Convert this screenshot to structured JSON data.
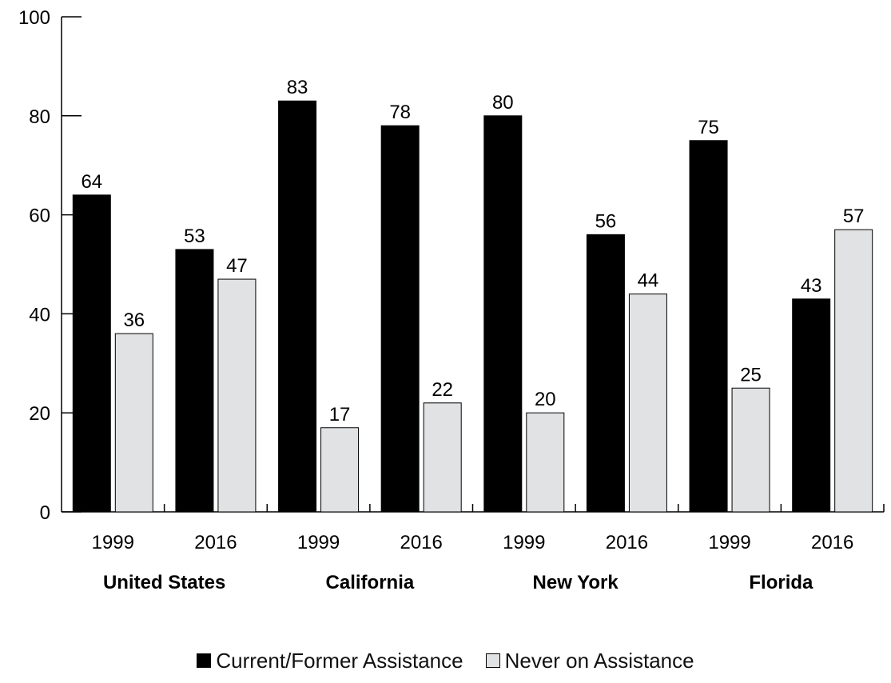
{
  "chart_data": {
    "type": "bar",
    "groups": [
      {
        "name": "United States",
        "years": [
          "1999",
          "2016"
        ]
      },
      {
        "name": "California",
        "years": [
          "1999",
          "2016"
        ]
      },
      {
        "name": "New York",
        "years": [
          "1999",
          "2016"
        ]
      },
      {
        "name": "Florida",
        "years": [
          "1999",
          "2016"
        ]
      }
    ],
    "categories": [
      "United States 1999",
      "United States 2016",
      "California 1999",
      "California 2016",
      "New York 1999",
      "New York 2016",
      "Florida 1999",
      "Florida 2016"
    ],
    "series": [
      {
        "name": "Current/Former Assistance",
        "color": "#000000",
        "values": [
          64,
          53,
          83,
          78,
          80,
          56,
          75,
          43
        ]
      },
      {
        "name": "Never on Assistance",
        "color": "#e1e2e4",
        "values": [
          36,
          47,
          17,
          22,
          20,
          44,
          25,
          57
        ]
      }
    ],
    "ylim": [
      0,
      100
    ],
    "yticks": [
      0,
      20,
      40,
      60,
      80,
      100
    ],
    "title": "",
    "xlabel": "",
    "ylabel": "",
    "legend_position": "bottom-center",
    "grid": false
  }
}
